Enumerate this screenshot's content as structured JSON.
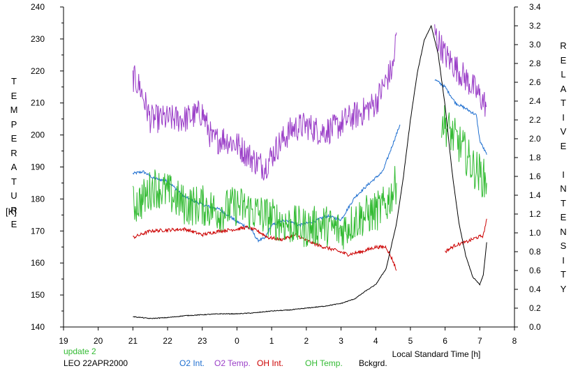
{
  "chart_data": {
    "type": "line",
    "title": "",
    "xlabel": "Local Standard Time [h]",
    "ylabel_left": "TEMPERATURE",
    "ylabel_left_unit": "[K]",
    "ylabel_right": "RELATIVE INTENSITY",
    "grid": false,
    "legend_placement": "bottom",
    "x_axis": {
      "range": [
        19,
        32
      ],
      "tick_labels": [
        "19",
        "20",
        "21",
        "22",
        "23",
        "0",
        "1",
        "2",
        "3",
        "4",
        "5",
        "6",
        "7",
        "8"
      ]
    },
    "y_left": {
      "range": [
        140,
        240
      ],
      "tick_labels": [
        "240",
        "230",
        "220",
        "210",
        "200",
        "190",
        "180",
        "170",
        "160",
        "150",
        "140"
      ]
    },
    "y_right": {
      "range": [
        0.0,
        3.4
      ],
      "tick_labels": [
        "3.4",
        "3.2",
        "3.0",
        "2.8",
        "2.6",
        "2.4",
        "2.2",
        "2.0",
        "1.8",
        "1.6",
        "1.4",
        "1.2",
        "1.0",
        "0.8",
        "0.6",
        "0.4",
        "0.2",
        "0.0"
      ]
    },
    "annotations": {
      "update": "update 2",
      "campaign": "LEO 22APR2000"
    },
    "series": [
      {
        "name": "O2 Int.",
        "color": "#1f6fd0",
        "axis": "right",
        "noise": 0.015,
        "segments": [
          [
            [
              21.0,
              1.63
            ],
            [
              21.3,
              1.65
            ],
            [
              21.6,
              1.58
            ],
            [
              22.0,
              1.55
            ],
            [
              22.5,
              1.38
            ],
            [
              23.0,
              1.3
            ],
            [
              23.5,
              1.25
            ],
            [
              24.0,
              1.12
            ],
            [
              24.4,
              1.04
            ],
            [
              24.6,
              0.92
            ],
            [
              24.8,
              0.94
            ],
            [
              25.0,
              1.08
            ],
            [
              25.4,
              1.14
            ],
            [
              25.8,
              1.08
            ],
            [
              26.2,
              1.12
            ],
            [
              26.6,
              1.18
            ],
            [
              27.0,
              1.14
            ],
            [
              27.4,
              1.38
            ],
            [
              27.8,
              1.52
            ],
            [
              28.2,
              1.65
            ],
            [
              28.5,
              1.95
            ],
            [
              28.7,
              2.15
            ]
          ],
          [
            [
              29.7,
              2.63
            ],
            [
              30.0,
              2.55
            ],
            [
              30.3,
              2.38
            ],
            [
              30.6,
              2.32
            ],
            [
              30.9,
              2.25
            ],
            [
              31.0,
              1.98
            ],
            [
              31.2,
              1.83
            ]
          ]
        ]
      },
      {
        "name": "O2 Temp.",
        "color": "#9b40c8",
        "axis": "left",
        "noise": 4.5,
        "segments": [
          [
            [
              21.0,
              218
            ],
            [
              21.2,
              215
            ],
            [
              21.5,
              205
            ],
            [
              22.0,
              205
            ],
            [
              22.5,
              205
            ],
            [
              23.0,
              207
            ],
            [
              23.3,
              198
            ],
            [
              23.6,
              199
            ],
            [
              24.0,
              197
            ],
            [
              24.5,
              192
            ],
            [
              24.8,
              190
            ],
            [
              25.2,
              197
            ],
            [
              25.6,
              202
            ],
            [
              26.0,
              203
            ],
            [
              26.4,
              201
            ],
            [
              26.8,
              202
            ],
            [
              27.2,
              205
            ],
            [
              27.6,
              207
            ],
            [
              28.0,
              210
            ],
            [
              28.3,
              217
            ],
            [
              28.5,
              221
            ],
            [
              28.6,
              232
            ]
          ],
          [
            [
              29.7,
              232
            ],
            [
              30.0,
              225
            ],
            [
              30.4,
              220
            ],
            [
              30.8,
              215
            ],
            [
              31.2,
              209
            ]
          ]
        ]
      },
      {
        "name": "OH Int.",
        "color": "#cc0000",
        "axis": "right",
        "noise": 0.018,
        "segments": [
          [
            [
              21.0,
              0.95
            ],
            [
              21.5,
              1.02
            ],
            [
              22.0,
              1.03
            ],
            [
              22.5,
              1.04
            ],
            [
              23.0,
              0.98
            ],
            [
              23.5,
              1.02
            ],
            [
              24.0,
              1.04
            ],
            [
              24.3,
              1.06
            ],
            [
              24.6,
              1.02
            ],
            [
              24.9,
              0.95
            ],
            [
              25.3,
              0.93
            ],
            [
              25.7,
              0.98
            ],
            [
              26.0,
              0.92
            ],
            [
              26.4,
              0.86
            ],
            [
              26.8,
              0.82
            ],
            [
              27.2,
              0.77
            ],
            [
              27.6,
              0.8
            ],
            [
              28.0,
              0.85
            ],
            [
              28.3,
              0.85
            ],
            [
              28.5,
              0.7
            ],
            [
              28.6,
              0.6
            ]
          ],
          [
            [
              30.0,
              0.8
            ],
            [
              30.3,
              0.87
            ],
            [
              30.6,
              0.9
            ],
            [
              30.9,
              0.95
            ],
            [
              31.1,
              0.97
            ],
            [
              31.2,
              1.15
            ]
          ]
        ]
      },
      {
        "name": "OH Temp.",
        "color": "#33bb33",
        "axis": "left",
        "noise": 6.5,
        "segments": [
          [
            [
              21.0,
              178
            ],
            [
              21.3,
              180
            ],
            [
              21.6,
              184
            ],
            [
              22.0,
              182
            ],
            [
              22.5,
              178
            ],
            [
              23.0,
              178
            ],
            [
              23.5,
              176
            ],
            [
              24.0,
              178
            ],
            [
              24.5,
              176
            ],
            [
              25.0,
              174
            ],
            [
              25.5,
              172
            ],
            [
              26.0,
              171
            ],
            [
              26.5,
              172
            ],
            [
              27.0,
              170
            ],
            [
              27.5,
              174
            ],
            [
              28.0,
              176
            ],
            [
              28.3,
              178
            ],
            [
              28.6,
              185
            ]
          ],
          [
            [
              29.9,
              205
            ],
            [
              30.2,
              200
            ],
            [
              30.5,
              196
            ],
            [
              30.8,
              190
            ],
            [
              31.0,
              188
            ],
            [
              31.2,
              185
            ]
          ]
        ]
      },
      {
        "name": "Bckgrd.",
        "color": "#000000",
        "axis": "right",
        "noise": 0.004,
        "segments": [
          [
            [
              21.0,
              0.11
            ],
            [
              21.5,
              0.09
            ],
            [
              22.0,
              0.1
            ],
            [
              22.5,
              0.12
            ],
            [
              23.0,
              0.13
            ],
            [
              23.5,
              0.14
            ],
            [
              24.0,
              0.14
            ],
            [
              24.5,
              0.15
            ],
            [
              25.0,
              0.17
            ],
            [
              25.5,
              0.18
            ],
            [
              26.0,
              0.2
            ],
            [
              26.5,
              0.22
            ],
            [
              27.0,
              0.25
            ],
            [
              27.4,
              0.3
            ],
            [
              27.7,
              0.38
            ],
            [
              28.0,
              0.45
            ],
            [
              28.3,
              0.62
            ],
            [
              28.6,
              1.1
            ],
            [
              28.8,
              1.6
            ],
            [
              29.0,
              2.2
            ],
            [
              29.2,
              2.7
            ],
            [
              29.4,
              3.05
            ],
            [
              29.6,
              3.2
            ],
            [
              29.8,
              2.9
            ],
            [
              30.0,
              2.35
            ],
            [
              30.2,
              1.65
            ],
            [
              30.4,
              1.1
            ],
            [
              30.6,
              0.75
            ],
            [
              30.8,
              0.53
            ],
            [
              31.0,
              0.45
            ],
            [
              31.1,
              0.55
            ],
            [
              31.2,
              0.9
            ]
          ]
        ]
      }
    ]
  }
}
